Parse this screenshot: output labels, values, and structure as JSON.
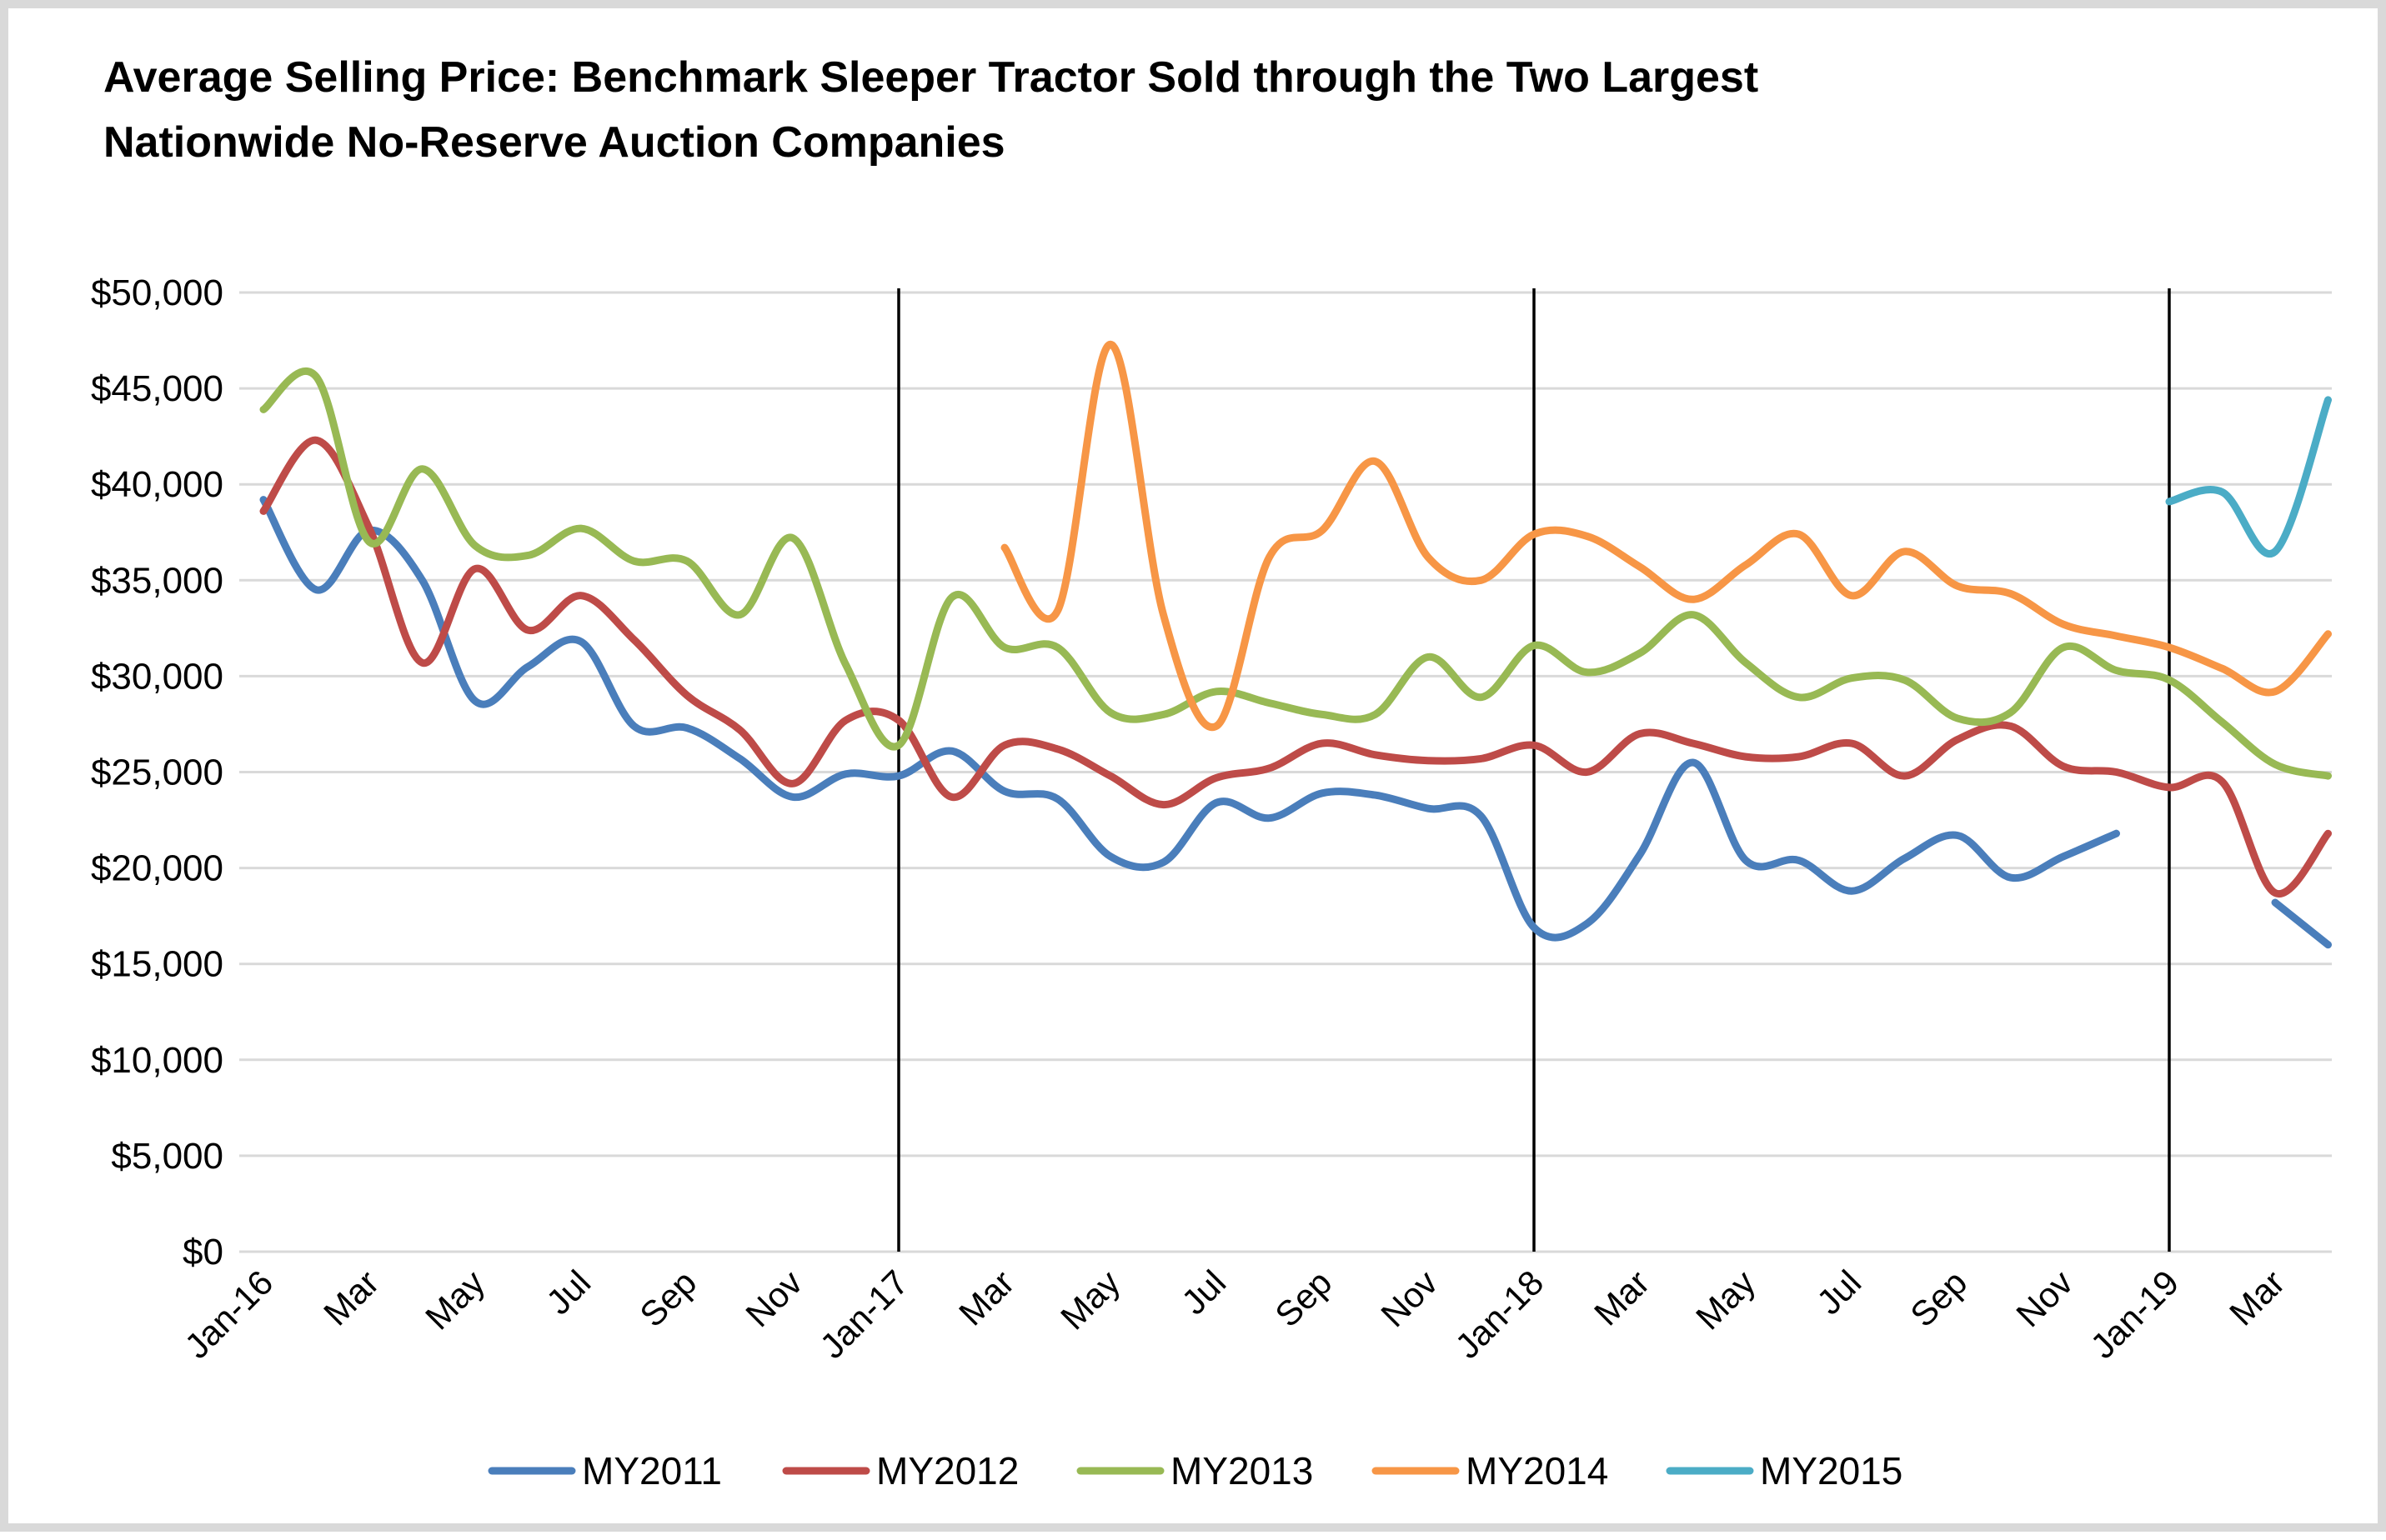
{
  "chart_data": {
    "type": "line",
    "title_lines": [
      "Average Selling Price: Benchmark Sleeper Tractor Sold through the Two Largest",
      "Nationwide No-Reserve Auction Companies"
    ],
    "xlabel": "",
    "ylabel": "",
    "ylim": [
      0,
      50000
    ],
    "y_ticks": [
      "$0",
      "$5,000",
      "$10,000",
      "$15,000",
      "$20,000",
      "$25,000",
      "$30,000",
      "$35,000",
      "$40,000",
      "$45,000",
      "$50,000"
    ],
    "y_tick_values": [
      0,
      5000,
      10000,
      15000,
      20000,
      25000,
      30000,
      35000,
      40000,
      45000,
      50000
    ],
    "x_tick_labels": [
      "Jan-16",
      "Mar",
      "May",
      "Jul",
      "Sep",
      "Nov",
      "Jan-17",
      "Mar",
      "May",
      "Jul",
      "Sep",
      "Nov",
      "Jan-18",
      "Mar",
      "May",
      "Jul",
      "Sep",
      "Nov",
      "Jan-19",
      "Mar"
    ],
    "x_tick_months": [
      0,
      2,
      4,
      6,
      8,
      10,
      12,
      14,
      16,
      18,
      20,
      22,
      24,
      26,
      28,
      30,
      32,
      34,
      36,
      38
    ],
    "categories": [
      "Jan-16",
      "Feb-16",
      "Mar-16",
      "Apr-16",
      "May-16",
      "Jun-16",
      "Jul-16",
      "Aug-16",
      "Sep-16",
      "Oct-16",
      "Nov-16",
      "Dec-16",
      "Jan-17",
      "Feb-17",
      "Mar-17",
      "Apr-17",
      "May-17",
      "Jun-17",
      "Jul-17",
      "Aug-17",
      "Sep-17",
      "Oct-17",
      "Nov-17",
      "Dec-17",
      "Jan-18",
      "Feb-18",
      "Mar-18",
      "Apr-18",
      "May-18",
      "Jun-18",
      "Jul-18",
      "Aug-18",
      "Sep-18",
      "Oct-18",
      "Nov-18",
      "Dec-18",
      "Jan-19",
      "Feb-19",
      "Mar-19",
      "Apr-19"
    ],
    "vertical_lines_at": [
      "Jan-17",
      "Jan-18",
      "Jan-19"
    ],
    "grid": "horizontal",
    "legend_position": "bottom",
    "series": [
      {
        "name": "MY2011",
        "color": "#4a7ebb",
        "values": [
          39200,
          34500,
          37600,
          35000,
          28700,
          30500,
          31800,
          27400,
          27300,
          25700,
          23700,
          24900,
          24800,
          26100,
          24000,
          23600,
          20600,
          20300,
          23400,
          22600,
          23900,
          23800,
          23100,
          22700,
          16900,
          17100,
          20700,
          25500,
          20400,
          20400,
          18800,
          20500,
          21700,
          19500,
          20600,
          21800,
          null,
          null,
          18200,
          16000
        ]
      },
      {
        "name": "MY2012",
        "color": "#be4b48",
        "values": [
          38600,
          42300,
          37700,
          30700,
          35600,
          32400,
          34200,
          31900,
          29000,
          27200,
          24400,
          27700,
          27700,
          23700,
          26400,
          26200,
          24800,
          23300,
          24700,
          25200,
          26500,
          25900,
          25600,
          25700,
          26400,
          25000,
          27000,
          26500,
          25800,
          25800,
          26500,
          24800,
          26700,
          27400,
          25300,
          25000,
          24200,
          24500,
          18700,
          21800
        ]
      },
      {
        "name": "MY2013",
        "color": "#98b954",
        "values": [
          43900,
          45600,
          37000,
          40800,
          36800,
          36300,
          37700,
          36000,
          36000,
          33200,
          37200,
          30600,
          26400,
          34100,
          31500,
          31500,
          28100,
          28000,
          29200,
          28600,
          28000,
          28000,
          31000,
          28900,
          31600,
          30200,
          31200,
          33200,
          30700,
          28900,
          29900,
          29800,
          27800,
          28100,
          31500,
          30300,
          29800,
          27600,
          25400,
          24800
        ]
      },
      {
        "name": "MY2014",
        "color": "#f79646",
        "values": [
          null,
          null,
          null,
          null,
          null,
          null,
          null,
          null,
          null,
          null,
          null,
          null,
          null,
          null,
          36700,
          33400,
          47300,
          33200,
          27400,
          36200,
          37600,
          41200,
          36200,
          35000,
          37400,
          37300,
          35700,
          34000,
          35800,
          37400,
          34200,
          36500,
          34700,
          34300,
          32700,
          32100,
          31500,
          30400,
          29200,
          32200
        ]
      },
      {
        "name": "MY2015",
        "color": "#4bacc6",
        "values": [
          null,
          null,
          null,
          null,
          null,
          null,
          null,
          null,
          null,
          null,
          null,
          null,
          null,
          null,
          null,
          null,
          null,
          null,
          null,
          null,
          null,
          null,
          null,
          null,
          null,
          null,
          null,
          null,
          null,
          null,
          null,
          null,
          null,
          null,
          null,
          null,
          39100,
          39600,
          36500,
          44400
        ]
      }
    ]
  }
}
